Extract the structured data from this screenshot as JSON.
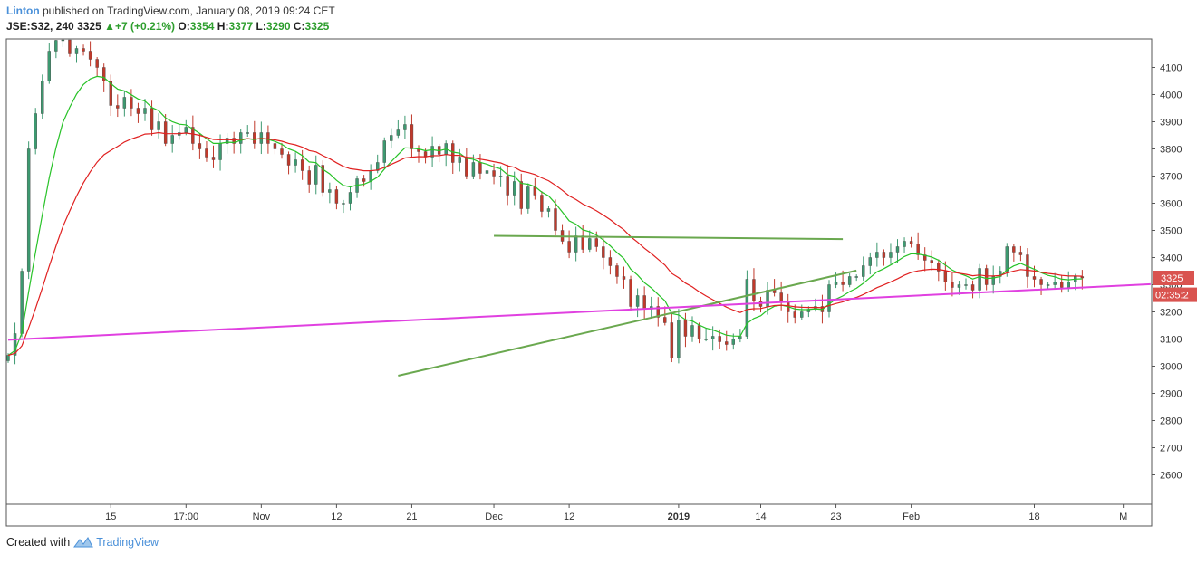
{
  "header": {
    "author": "Linton",
    "published_text": "published on TradingView.com, January 08, 2019 09:24 CET",
    "symbol": "JSE:S32, 240",
    "last": "3325",
    "change": "+7 (+0.21%)",
    "o_label": "O:",
    "o_value": "3354",
    "h_label": "H:",
    "h_value": "3377",
    "l_label": "L:",
    "l_value": "3290",
    "c_label": "C:",
    "c_value": "3325"
  },
  "footer": {
    "created_with": "Created with",
    "brand": "TradingView"
  },
  "colors": {
    "bull": "#3d9970",
    "bear": "#c0392b",
    "ema_fast": "#27c227",
    "ema_slow": "#e02020",
    "trend_green": "#6aa84f",
    "trend_magenta": "#e040e0",
    "price_label_bg": "#d9534f"
  },
  "chart_data": {
    "type": "candlestick",
    "symbol": "JSE:S32",
    "interval": "240",
    "ylim": [
      2500,
      4180
    ],
    "y_ticks": [
      2600,
      2700,
      2800,
      2900,
      3000,
      3100,
      3200,
      3300,
      3400,
      3500,
      3600,
      3700,
      3800,
      3900,
      4000,
      4100
    ],
    "x_ticks": [
      {
        "label": "15",
        "bar": 15
      },
      {
        "label": "17:00",
        "bar": 26
      },
      {
        "label": "Nov",
        "bar": 37
      },
      {
        "label": "12",
        "bar": 48
      },
      {
        "label": "21",
        "bar": 59
      },
      {
        "label": "Dec",
        "bar": 71
      },
      {
        "label": "12",
        "bar": 82
      },
      {
        "label": "2019",
        "bar": 98,
        "bold": true
      },
      {
        "label": "14",
        "bar": 110
      },
      {
        "label": "23",
        "bar": 121
      },
      {
        "label": "Feb",
        "bar": 132
      },
      {
        "label": "18",
        "bar": 150
      },
      {
        "label": "M",
        "bar": 163
      }
    ],
    "current_price": {
      "label": "3325",
      "value": 3325
    },
    "countdown": {
      "label": "02:35:2",
      "value": 3263
    },
    "closes": [
      3040,
      3120,
      3350,
      3800,
      3930,
      4050,
      4160,
      4200,
      4220,
      4150,
      4170,
      4160,
      4130,
      4100,
      4050,
      3960,
      3950,
      3990,
      3950,
      3930,
      3950,
      3870,
      3900,
      3820,
      3850,
      3860,
      3880,
      3820,
      3800,
      3770,
      3760,
      3820,
      3840,
      3820,
      3860,
      3860,
      3820,
      3860,
      3820,
      3800,
      3780,
      3740,
      3760,
      3720,
      3670,
      3740,
      3640,
      3650,
      3600,
      3600,
      3640,
      3690,
      3680,
      3720,
      3750,
      3830,
      3850,
      3870,
      3890,
      3800,
      3790,
      3770,
      3810,
      3780,
      3820,
      3750,
      3770,
      3700,
      3750,
      3710,
      3720,
      3700,
      3700,
      3630,
      3680,
      3580,
      3660,
      3630,
      3570,
      3580,
      3500,
      3460,
      3420,
      3480,
      3430,
      3470,
      3440,
      3400,
      3370,
      3330,
      3320,
      3220,
      3260,
      3210,
      3220,
      3180,
      3160,
      3030,
      3170,
      3110,
      3150,
      3100,
      3100,
      3110,
      3090,
      3080,
      3100,
      3110,
      3320,
      3240,
      3220,
      3280,
      3270,
      3240,
      3200,
      3180,
      3200,
      3210,
      3220,
      3200,
      3300,
      3310,
      3300,
      3330,
      3330,
      3370,
      3400,
      3420,
      3400,
      3420,
      3440,
      3460,
      3450,
      3410,
      3390,
      3380,
      3350,
      3310,
      3290,
      3300,
      3300,
      3280,
      3360,
      3300,
      3330,
      3350,
      3440,
      3420,
      3410,
      3330,
      3320,
      3300,
      3300,
      3310,
      3290,
      3310,
      3330,
      3325
    ],
    "ema_fast_period": 8,
    "ema_slow_period": 21,
    "trendlines": [
      {
        "name": "resistance",
        "color": "green",
        "from": {
          "bar": 71,
          "price": 3480
        },
        "to": {
          "bar": 122,
          "price": 3468
        }
      },
      {
        "name": "rising-support",
        "color": "green",
        "from": {
          "bar": 57,
          "price": 2965
        },
        "to": {
          "bar": 124,
          "price": 3352
        }
      },
      {
        "name": "long-support",
        "color": "magenta",
        "from": {
          "bar": 0,
          "price": 3097
        },
        "to": {
          "bar": 167,
          "price": 3302
        }
      }
    ]
  }
}
